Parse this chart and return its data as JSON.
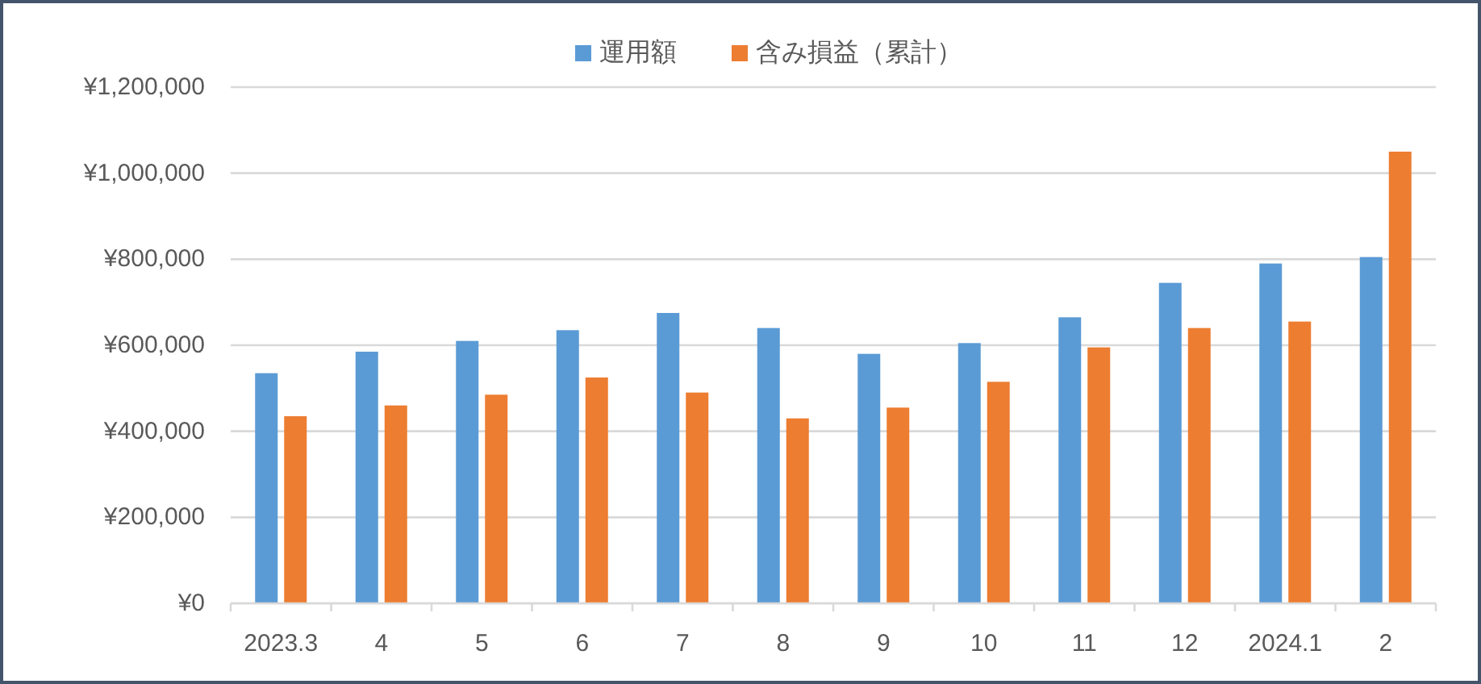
{
  "chart_data": {
    "type": "bar",
    "categories": [
      "2023.3",
      "4",
      "5",
      "6",
      "7",
      "8",
      "9",
      "10",
      "11",
      "12",
      "2024.1",
      "2"
    ],
    "series": [
      {
        "name": "運用額",
        "color": "#5b9bd5",
        "values": [
          535000,
          585000,
          610000,
          635000,
          675000,
          640000,
          580000,
          605000,
          665000,
          745000,
          790000,
          805000
        ]
      },
      {
        "name": "含み損益（累計）",
        "color": "#ed7d31",
        "values": [
          435000,
          460000,
          485000,
          525000,
          490000,
          430000,
          455000,
          515000,
          595000,
          640000,
          655000,
          1050000
        ]
      }
    ],
    "ylim": [
      0,
      1200000
    ],
    "yticks": [
      {
        "value": 0,
        "label": "¥0"
      },
      {
        "value": 200000,
        "label": "¥200,000"
      },
      {
        "value": 400000,
        "label": "¥400,000"
      },
      {
        "value": 600000,
        "label": "¥600,000"
      },
      {
        "value": 800000,
        "label": "¥800,000"
      },
      {
        "value": 1000000,
        "label": "¥1,000,000"
      },
      {
        "value": 1200000,
        "label": "¥1,200,000"
      }
    ],
    "grid": "y",
    "legend": "top"
  }
}
